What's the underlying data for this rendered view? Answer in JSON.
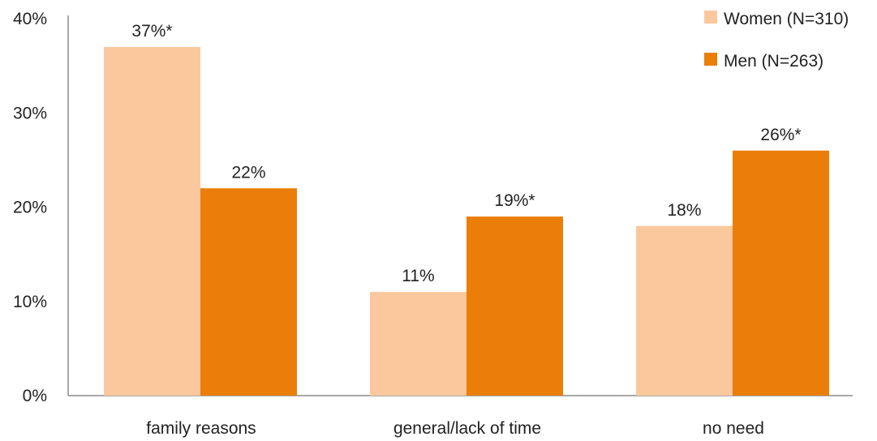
{
  "chart_data": {
    "type": "bar",
    "categories": [
      "family reasons",
      "general/lack of time",
      "no need"
    ],
    "series": [
      {
        "name": "Women (N=310)",
        "color": "#fbc89e",
        "values": [
          37,
          11,
          18
        ],
        "labels": [
          "37%*",
          "11%",
          "18%"
        ]
      },
      {
        "name": "Men (N=263)",
        "color": "#ea7e09",
        "values": [
          22,
          19,
          26
        ],
        "labels": [
          "22%",
          "19%*",
          "26%*"
        ]
      }
    ],
    "ylim": [
      0,
      40
    ],
    "yticks": [
      0,
      10,
      20,
      30,
      40
    ],
    "ytick_labels": [
      "0%",
      "10%",
      "20%",
      "30%",
      "40%"
    ],
    "legend_position": "top-right",
    "grid": false,
    "title": "",
    "xlabel": "",
    "ylabel": ""
  }
}
